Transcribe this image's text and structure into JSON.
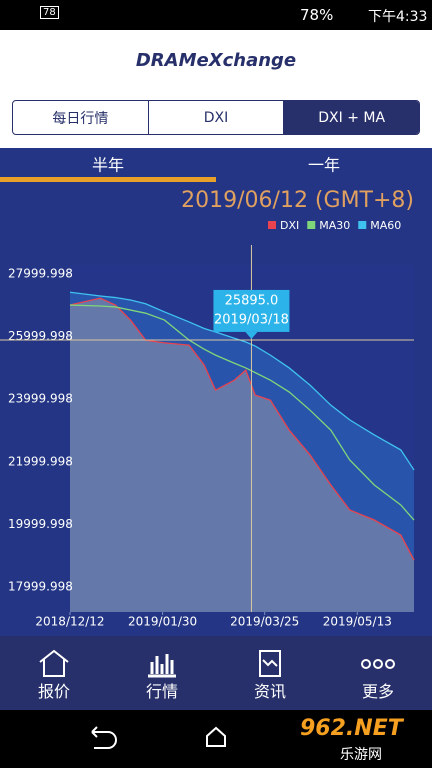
{
  "status": {
    "badge": "78",
    "battery": "78%",
    "time": "下午4:33"
  },
  "header": {
    "logo": "DRAMeXchange"
  },
  "tabs": [
    "每日行情",
    "DXI",
    "DXI + MA"
  ],
  "periods": [
    "半年",
    "一年"
  ],
  "chart_data": {
    "type": "line",
    "subtitle": "2019/06/12 (GMT+8)",
    "x": [
      "2018/12/12",
      "2018/12/28",
      "2019/01/05",
      "2019/01/13",
      "2019/01/21",
      "2019/01/31",
      "2019/02/13",
      "2019/02/21",
      "2019/02/27",
      "2019/03/09",
      "2019/03/15",
      "2019/03/20",
      "2019/03/28",
      "2019/04/07",
      "2019/04/18",
      "2019/04/29",
      "2019/05/09",
      "2019/05/22",
      "2019/06/05",
      "2019/06/12"
    ],
    "xlim": [
      "2018/12/12",
      "2019/06/12"
    ],
    "xticks": [
      "2018/12/12",
      "2019/01/30",
      "2019/03/25",
      "2019/05/13"
    ],
    "ylim": [
      17200,
      28290
    ],
    "yticks": [
      17999.998,
      19999.998,
      21999.998,
      23999.998,
      25999.998,
      27999.998
    ],
    "series": [
      {
        "name": "DXI",
        "color": "#e8434f",
        "values": [
          27010,
          27230,
          27010,
          26530,
          25890,
          25800,
          25730,
          25090,
          24290,
          24610,
          24930,
          24130,
          23970,
          23010,
          22220,
          21260,
          20460,
          20140,
          19660,
          18860
        ]
      },
      {
        "name": "MA30",
        "color": "#7fd67a",
        "values": [
          27010,
          26980,
          26950,
          26850,
          26750,
          26530,
          25890,
          25600,
          25410,
          25150,
          25000,
          24850,
          24610,
          24230,
          23650,
          23010,
          22060,
          21260,
          20620,
          20140
        ]
      },
      {
        "name": "MA60",
        "color": "#3ec3f0",
        "values": [
          27420,
          27300,
          27250,
          27170,
          27050,
          26790,
          26470,
          26260,
          26150,
          25950,
          25830,
          25700,
          25410,
          25000,
          24450,
          23810,
          23340,
          22860,
          22380,
          21740
        ]
      }
    ],
    "crosshair": {
      "x": "2019/03/18",
      "value": {
        "value": 25895,
        "label": "25895.0"
      }
    }
  },
  "nav": [
    "报价",
    "行情",
    "资讯",
    "更多"
  ],
  "watermark": {
    "brand": "962.NET",
    "site": "乐游网"
  }
}
